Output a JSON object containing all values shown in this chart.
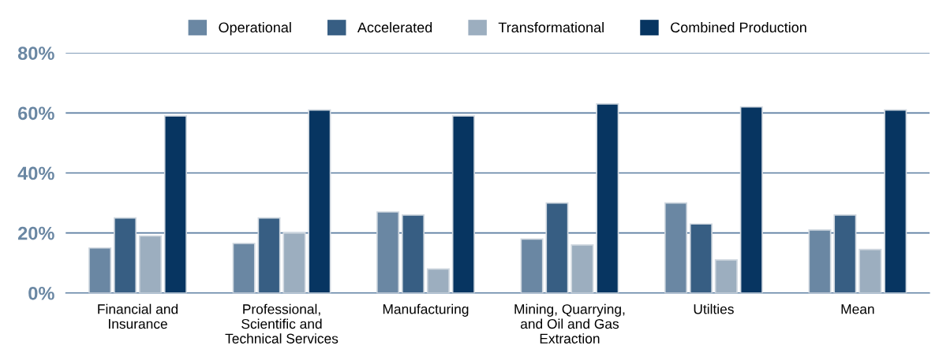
{
  "chart_data": {
    "type": "bar",
    "categories": [
      "Financial and\nInsurance",
      "Professional,\nScientific and\nTechnical Services",
      "Manufacturing",
      "Mining, Quarrying,\nand Oil and Gas\nExtraction",
      "Utilties",
      "Mean"
    ],
    "series": [
      {
        "name": "Operational",
        "color": "#6a87a3",
        "values": [
          15,
          16.5,
          27,
          18,
          30,
          21
        ]
      },
      {
        "name": "Accelerated",
        "color": "#375e83",
        "values": [
          25,
          25,
          26,
          30,
          23,
          26
        ]
      },
      {
        "name": "Transformational",
        "color": "#9caebf",
        "values": [
          19,
          20,
          8,
          16,
          11,
          14.5
        ]
      },
      {
        "name": "Combined Production",
        "color": "#073561",
        "values": [
          59,
          61,
          59,
          63,
          62,
          61
        ]
      }
    ],
    "ylim": [
      0,
      80
    ],
    "yticks": [
      {
        "value": 0,
        "label": "0%"
      },
      {
        "value": 20,
        "label": "20%"
      },
      {
        "value": 40,
        "label": "40%"
      },
      {
        "value": 60,
        "label": "60%"
      },
      {
        "value": 80,
        "label": "80%"
      }
    ],
    "grid": "y",
    "legend": "top"
  }
}
